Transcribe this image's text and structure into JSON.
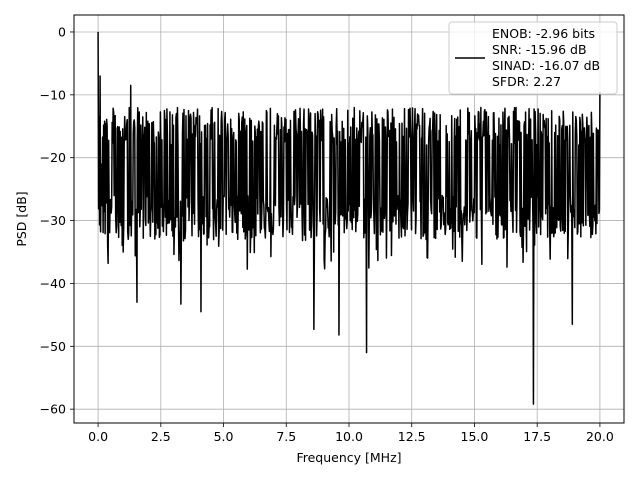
{
  "chart_data": {
    "type": "line",
    "title": "",
    "xlabel": "Frequency [MHz]",
    "ylabel": "PSD [dB]",
    "xlim": [
      -0.96,
      20.96
    ],
    "ylim": [
      -62.2,
      2.7
    ],
    "x_ticks": [
      0.0,
      2.5,
      5.0,
      7.5,
      10.0,
      12.5,
      15.0,
      17.5,
      20.0
    ],
    "x_tick_labels": [
      "0.0",
      "2.5",
      "5.0",
      "7.5",
      "10.0",
      "12.5",
      "15.0",
      "17.5",
      "20.0"
    ],
    "y_ticks": [
      0,
      -10,
      -20,
      -30,
      -40,
      -50,
      -60
    ],
    "y_tick_labels": [
      "0",
      "−10",
      "−20",
      "−30",
      "−40",
      "−50",
      "−60"
    ],
    "grid": true,
    "legend_position": "top-right",
    "legend_lines": [
      "ENOB: -2.96 bits",
      "SNR: -15.96 dB",
      "SINAD: -16.07 dB",
      "SFDR: 2.27"
    ],
    "line_color": "#000000",
    "series": [
      {
        "x_start": 0.0,
        "x_end": 20.0,
        "points": 1000,
        "start_value": 0.0,
        "floor_mean_db": -21,
        "floor_band_db": [
          -28,
          -12
        ],
        "notable_points": [
          {
            "x": 0.0,
            "y": 0.0
          },
          {
            "x": 0.05,
            "y": -13.5
          },
          {
            "x": 0.08,
            "y": -7.0
          },
          {
            "x": 0.12,
            "y": -21.0
          },
          {
            "x": 0.4,
            "y": -36.8
          },
          {
            "x": 1.0,
            "y": -35.0
          },
          {
            "x": 1.55,
            "y": -43.0
          },
          {
            "x": 3.3,
            "y": -43.3
          },
          {
            "x": 4.1,
            "y": -44.5
          },
          {
            "x": 8.6,
            "y": -47.3
          },
          {
            "x": 9.6,
            "y": -48.2
          },
          {
            "x": 10.7,
            "y": -51.0
          },
          {
            "x": 17.35,
            "y": -59.2
          },
          {
            "x": 18.9,
            "y": -46.5
          },
          {
            "x": 1.3,
            "y": -8.5
          },
          {
            "x": 20.0,
            "y": -9.5
          }
        ]
      }
    ]
  }
}
